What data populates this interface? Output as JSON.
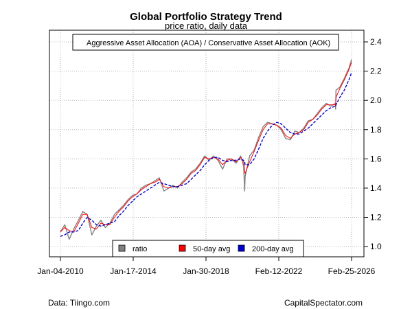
{
  "chart_data": {
    "type": "line",
    "title": "Global Portfolio Strategy Trend",
    "subtitle": "price ratio, daily data",
    "xlabel": "",
    "ylabel": "",
    "x_ticks": [
      "Jan-04-2010",
      "Jan-17-2014",
      "Jan-30-2018",
      "Feb-12-2022",
      "Feb-25-2026"
    ],
    "x_range": [
      "2010-01-04",
      "2026-02-25"
    ],
    "ylim": [
      0.93,
      2.48
    ],
    "y_ticks": [
      1.0,
      1.2,
      1.4,
      1.6,
      1.8,
      2.0,
      2.2,
      2.4
    ],
    "y_axis_side": "right",
    "grid": true,
    "top_legend": "Aggressive Asset Allocation (AOA) / Conservative Asset Allocation (AOK)",
    "legend_position": "bottom-center",
    "colors": {
      "ratio": "#808080",
      "ma50": "#ff0000",
      "ma200": "#0000cd"
    },
    "x_dates": [
      "2010-01-04",
      "2010-04-01",
      "2010-07-01",
      "2010-10-01",
      "2011-01-03",
      "2011-04-01",
      "2011-07-01",
      "2011-10-03",
      "2012-01-03",
      "2012-04-02",
      "2012-07-02",
      "2012-10-01",
      "2013-01-02",
      "2013-04-01",
      "2013-07-01",
      "2013-10-01",
      "2014-01-02",
      "2014-04-01",
      "2014-07-01",
      "2014-10-01",
      "2015-01-02",
      "2015-04-01",
      "2015-07-01",
      "2015-10-01",
      "2016-01-04",
      "2016-04-01",
      "2016-07-01",
      "2016-10-03",
      "2017-01-03",
      "2017-04-03",
      "2017-07-03",
      "2017-10-02",
      "2018-01-02",
      "2018-04-02",
      "2018-07-02",
      "2018-10-01",
      "2019-01-02",
      "2019-04-01",
      "2019-07-01",
      "2019-10-01",
      "2020-01-02",
      "2020-03-02",
      "2020-03-23",
      "2020-04-01",
      "2020-07-01",
      "2020-10-01",
      "2021-01-04",
      "2021-04-01",
      "2021-07-01",
      "2021-10-01",
      "2022-01-03",
      "2022-04-01",
      "2022-07-01",
      "2022-10-03",
      "2023-01-03",
      "2023-04-03",
      "2023-07-03",
      "2023-10-02",
      "2024-01-02",
      "2024-04-01",
      "2024-07-01",
      "2024-10-01",
      "2025-01-02",
      "2025-04-01",
      "2025-04-08",
      "2025-04-15",
      "2025-07-01",
      "2025-10-01",
      "2026-01-02",
      "2026-02-25"
    ],
    "series": [
      {
        "name": "ratio",
        "values": [
          1.1,
          1.15,
          1.05,
          1.12,
          1.18,
          1.24,
          1.22,
          1.08,
          1.14,
          1.18,
          1.13,
          1.16,
          1.22,
          1.25,
          1.28,
          1.32,
          1.35,
          1.36,
          1.4,
          1.42,
          1.43,
          1.45,
          1.47,
          1.38,
          1.4,
          1.42,
          1.4,
          1.44,
          1.47,
          1.51,
          1.53,
          1.57,
          1.62,
          1.59,
          1.62,
          1.59,
          1.53,
          1.6,
          1.6,
          1.57,
          1.62,
          1.55,
          1.38,
          1.48,
          1.62,
          1.66,
          1.75,
          1.82,
          1.85,
          1.84,
          1.83,
          1.8,
          1.74,
          1.73,
          1.79,
          1.78,
          1.81,
          1.86,
          1.87,
          1.91,
          1.95,
          1.98,
          1.96,
          1.98,
          1.94,
          2.07,
          2.09,
          2.15,
          2.22,
          2.28
        ]
      },
      {
        "name": "50-day avg",
        "values": [
          1.1,
          1.13,
          1.11,
          1.1,
          1.16,
          1.22,
          1.22,
          1.13,
          1.12,
          1.16,
          1.15,
          1.15,
          1.2,
          1.24,
          1.27,
          1.31,
          1.34,
          1.36,
          1.39,
          1.41,
          1.43,
          1.44,
          1.46,
          1.41,
          1.4,
          1.41,
          1.41,
          1.43,
          1.46,
          1.5,
          1.52,
          1.56,
          1.61,
          1.6,
          1.61,
          1.6,
          1.56,
          1.59,
          1.6,
          1.58,
          1.61,
          1.58,
          1.52,
          1.5,
          1.58,
          1.65,
          1.73,
          1.8,
          1.84,
          1.84,
          1.83,
          1.81,
          1.76,
          1.74,
          1.77,
          1.78,
          1.8,
          1.85,
          1.87,
          1.9,
          1.94,
          1.97,
          1.97,
          1.97,
          1.96,
          2.02,
          2.08,
          2.14,
          2.21,
          2.26
        ]
      },
      {
        "name": "200-day avg",
        "values": [
          1.07,
          1.08,
          1.1,
          1.1,
          1.11,
          1.16,
          1.2,
          1.18,
          1.15,
          1.14,
          1.15,
          1.16,
          1.17,
          1.21,
          1.24,
          1.28,
          1.31,
          1.34,
          1.36,
          1.38,
          1.4,
          1.42,
          1.44,
          1.43,
          1.42,
          1.41,
          1.41,
          1.42,
          1.43,
          1.46,
          1.49,
          1.52,
          1.56,
          1.59,
          1.61,
          1.61,
          1.59,
          1.58,
          1.59,
          1.59,
          1.6,
          1.59,
          1.58,
          1.56,
          1.56,
          1.6,
          1.67,
          1.74,
          1.79,
          1.83,
          1.85,
          1.84,
          1.81,
          1.78,
          1.77,
          1.77,
          1.79,
          1.81,
          1.84,
          1.87,
          1.9,
          1.93,
          1.95,
          1.96,
          1.96,
          1.97,
          2.02,
          2.07,
          2.14,
          2.19
        ]
      }
    ]
  },
  "footer": {
    "source": "Data: Tiingo.com",
    "site": "CapitalSpectator.com"
  }
}
